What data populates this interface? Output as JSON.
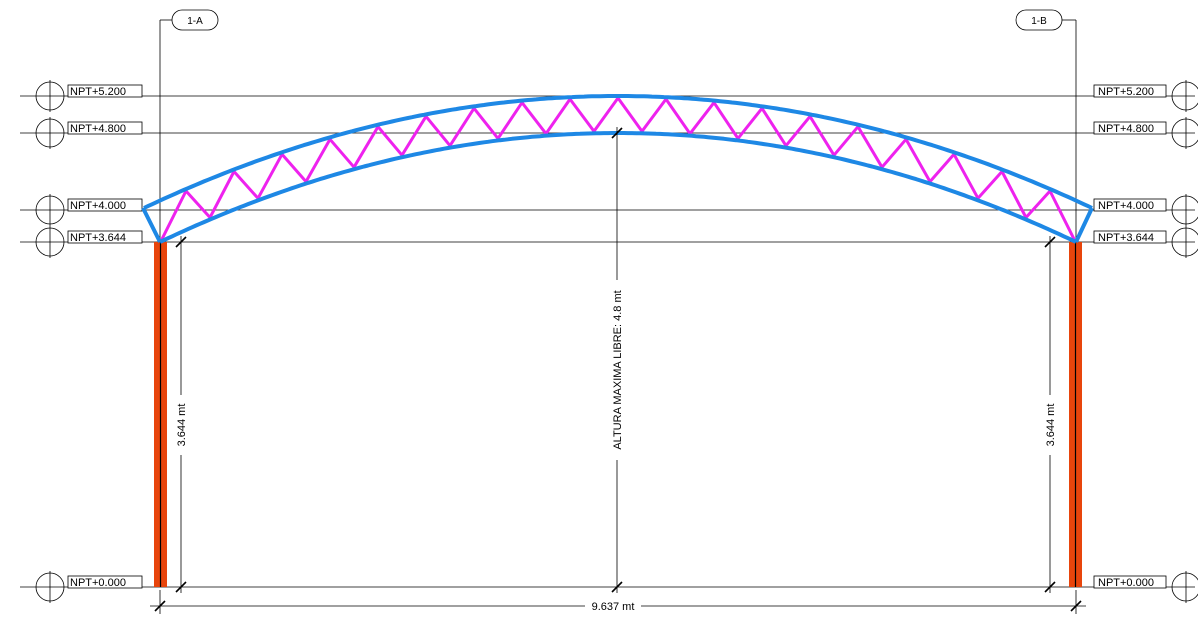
{
  "grid_axes": {
    "left": {
      "label": "1-A"
    },
    "right": {
      "label": "1-B"
    }
  },
  "levels": [
    {
      "id": "npt-5200",
      "label": "NPT+5.200",
      "elevation": 5.2
    },
    {
      "id": "npt-4800",
      "label": "NPT+4.800",
      "elevation": 4.8
    },
    {
      "id": "npt-4000",
      "label": "NPT+4.000",
      "elevation": 4.0
    },
    {
      "id": "npt-3644",
      "label": "NPT+3.644",
      "elevation": 3.644
    },
    {
      "id": "npt-0000",
      "label": "NPT+0.000",
      "elevation": 0.0
    }
  ],
  "dimensions": {
    "span": "9.637 mt",
    "left_column_height": "3.644 mt",
    "right_column_height": "3.644 mt",
    "max_clear_height": "ALTURA MAXIMA LIBRE: 4.8 mt"
  },
  "colors": {
    "arch_chord": "#1e88e5",
    "truss_web": "#ee22ee",
    "column": "#e8450c",
    "lines": "#000000"
  }
}
